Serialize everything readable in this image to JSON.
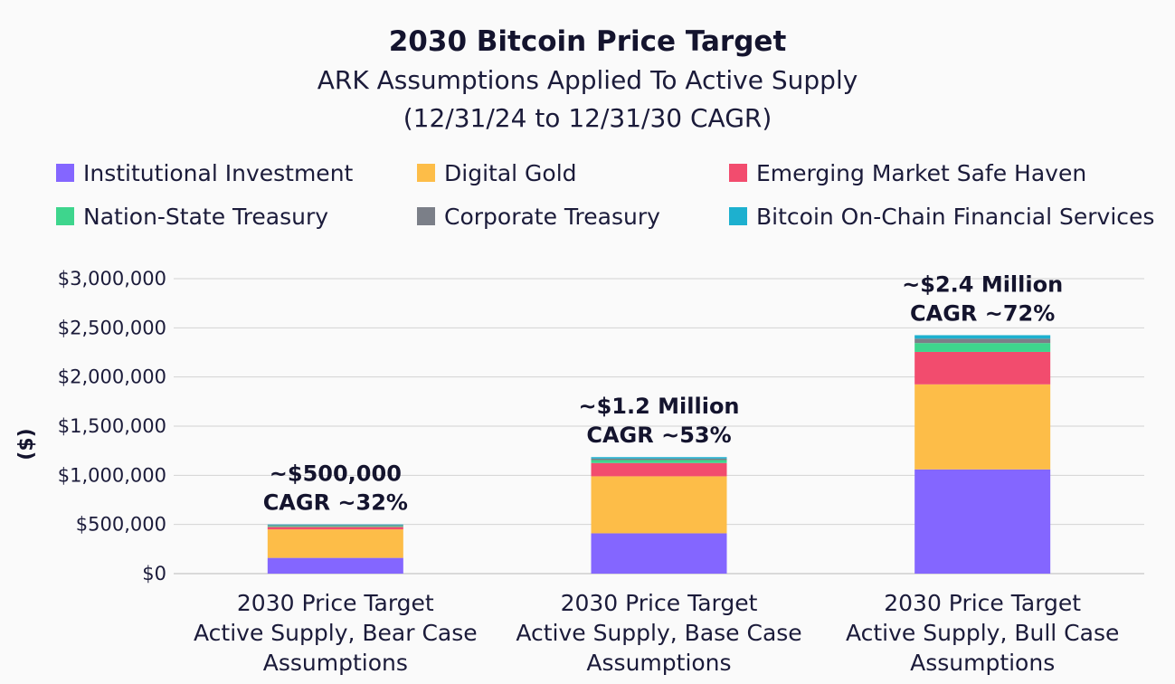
{
  "header": {
    "title": "2030 Bitcoin Price Target",
    "subtitle": "ARK Assumptions Applied To Active Supply",
    "subtitle2": "(12/31/24 to 12/31/30 CAGR)"
  },
  "legend": [
    {
      "name": "Institutional Investment",
      "color": "#8466ff"
    },
    {
      "name": "Digital Gold",
      "color": "#fdbd48"
    },
    {
      "name": "Emerging Market Safe Haven",
      "color": "#f24c6e"
    },
    {
      "name": "Nation-State Treasury",
      "color": "#3ed58d"
    },
    {
      "name": "Corporate Treasury",
      "color": "#7b7f88"
    },
    {
      "name": "Bitcoin On-Chain Financial Services",
      "color": "#1db0cf"
    }
  ],
  "chart_data": {
    "type": "bar",
    "stacked": true,
    "ylabel": "($)",
    "ylim": [
      0,
      3000000
    ],
    "yticks": [
      "$0",
      "$500,000",
      "$1,000,000",
      "$1,500,000",
      "$2,000,000",
      "$2,500,000",
      "$3,000,000"
    ],
    "categories": [
      [
        "2030 Price Target",
        "Active Supply, Bear Case",
        "Assumptions"
      ],
      [
        "2030 Price Target",
        "Active Supply, Base Case",
        "Assumptions"
      ],
      [
        "2030 Price Target",
        "Active Supply, Bull Case",
        "Assumptions"
      ]
    ],
    "series": [
      {
        "name": "Institutional Investment",
        "color": "#8466ff",
        "values": [
          160000,
          410000,
          1060000
        ]
      },
      {
        "name": "Digital Gold",
        "color": "#fdbd48",
        "values": [
          290000,
          580000,
          865000
        ]
      },
      {
        "name": "Emerging Market Safe Haven",
        "color": "#f24c6e",
        "values": [
          25000,
          135000,
          330000
        ]
      },
      {
        "name": "Nation-State Treasury",
        "color": "#3ed58d",
        "values": [
          10000,
          30000,
          90000
        ]
      },
      {
        "name": "Corporate Treasury",
        "color": "#7b7f88",
        "values": [
          8000,
          15000,
          45000
        ]
      },
      {
        "name": "Bitcoin On-Chain Financial Services",
        "color": "#1db0cf",
        "values": [
          7000,
          15000,
          35000
        ]
      }
    ],
    "annotations": [
      [
        "~$500,000",
        "CAGR ~32%"
      ],
      [
        "~$1.2 Million",
        "CAGR ~53%"
      ],
      [
        "~$2.4 Million",
        "CAGR ~72%"
      ]
    ],
    "grid": true,
    "legend_position": "top"
  }
}
